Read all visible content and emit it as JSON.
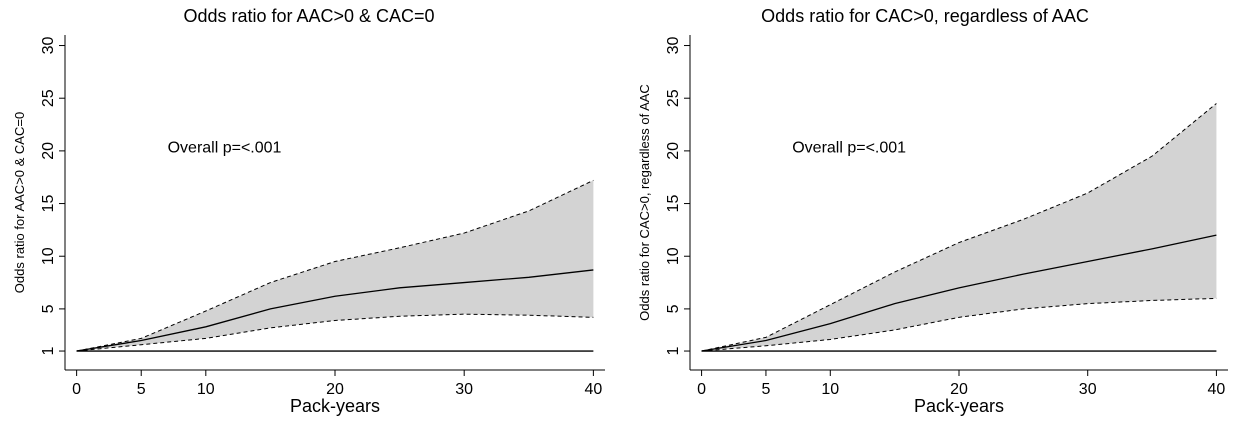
{
  "chart_data": [
    {
      "type": "line",
      "title": "Odds ratio for AAC>0 & CAC=0",
      "xlabel": "Pack-years",
      "ylabel": "Odds ratio for AAC>0 & CAC=0",
      "annotation": "Overall p=<.001",
      "x": [
        0,
        5,
        10,
        15,
        20,
        25,
        30,
        35,
        40
      ],
      "values": [
        1,
        2,
        3.3,
        5,
        6.2,
        7,
        7.5,
        8,
        8.7
      ],
      "upper": [
        1,
        2.2,
        4.8,
        7.5,
        9.5,
        10.8,
        12.2,
        14.3,
        17.2
      ],
      "lower": [
        1,
        1.6,
        2.2,
        3.2,
        3.9,
        4.3,
        4.5,
        4.4,
        4.2
      ],
      "line_color": "#000000",
      "band_color": "#d3d3d3",
      "refline": 1,
      "xlim": [
        -0.9,
        40.9
      ],
      "xticks": [
        0,
        5,
        10,
        20,
        30,
        40
      ],
      "ylim": [
        -0.8,
        31
      ],
      "yticks": [
        1,
        5,
        10,
        15,
        20,
        25,
        30
      ]
    },
    {
      "type": "line",
      "title": "Odds ratio for CAC>0, regardless of AAC",
      "xlabel": "Pack-years",
      "ylabel": "Odds ratio for CAC>0, regardless of AAC",
      "annotation": "Overall p=<.001",
      "x": [
        0,
        5,
        10,
        15,
        20,
        25,
        30,
        35,
        40
      ],
      "values": [
        1,
        2,
        3.6,
        5.5,
        7,
        8.3,
        9.5,
        10.7,
        12
      ],
      "upper": [
        1,
        2.3,
        5.4,
        8.5,
        11.3,
        13.5,
        16,
        19.5,
        24.5
      ],
      "lower": [
        1,
        1.5,
        2.1,
        3,
        4.2,
        5,
        5.5,
        5.8,
        6
      ],
      "line_color": "#000000",
      "band_color": "#d3d3d3",
      "refline": 1,
      "xlim": [
        -0.9,
        40.9
      ],
      "xticks": [
        0,
        5,
        10,
        20,
        30,
        40
      ],
      "ylim": [
        -0.8,
        31
      ],
      "yticks": [
        1,
        5,
        10,
        15,
        20,
        25,
        30
      ]
    }
  ]
}
